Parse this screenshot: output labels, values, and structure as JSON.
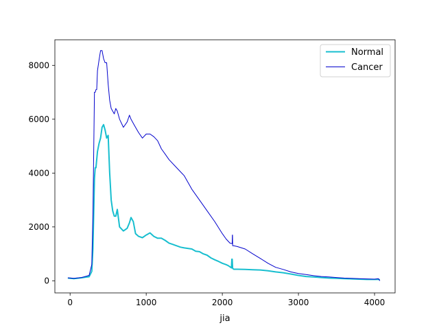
{
  "chart_data": {
    "type": "line",
    "title": "",
    "xlabel": "jia",
    "ylabel": "",
    "xlim": [
      -200,
      4270
    ],
    "ylim": [
      -450,
      8950
    ],
    "x_ticks": [
      0,
      1000,
      2000,
      3000,
      4000
    ],
    "y_ticks": [
      0,
      2000,
      4000,
      6000,
      8000
    ],
    "x_tick_labels": [
      "0",
      "1000",
      "2000",
      "3000",
      "4000"
    ],
    "y_tick_labels": [
      "0",
      "2000",
      "4000",
      "6000",
      "8000"
    ],
    "grid": false,
    "legend": {
      "placement": "top-right",
      "entries": [
        "Normal",
        "Cancer"
      ]
    },
    "series": [
      {
        "name": "Normal",
        "color": "#17becf",
        "width": 2,
        "x": [
          -30,
          50,
          150,
          250,
          285,
          300,
          320,
          330,
          340,
          360,
          380,
          400,
          420,
          440,
          460,
          480,
          500,
          520,
          540,
          560,
          580,
          600,
          620,
          650,
          700,
          750,
          780,
          800,
          830,
          860,
          900,
          950,
          1000,
          1050,
          1100,
          1150,
          1200,
          1250,
          1300,
          1350,
          1400,
          1450,
          1500,
          1600,
          1650,
          1700,
          1750,
          1800,
          1850,
          1900,
          1950,
          2000,
          2050,
          2080,
          2100,
          2120,
          2125,
          2130,
          2135,
          2140,
          2150,
          2200,
          2300,
          2400,
          2500,
          2600,
          2700,
          2800,
          2900,
          3000,
          3100,
          3200,
          3300,
          3400,
          3500,
          3600,
          3700,
          3800,
          3900,
          4000,
          4050,
          4070
        ],
        "y": [
          100,
          80,
          110,
          150,
          350,
          1200,
          3800,
          4200,
          4200,
          4800,
          5100,
          5300,
          5700,
          5800,
          5600,
          5300,
          5400,
          4000,
          3000,
          2600,
          2400,
          2400,
          2650,
          2000,
          1850,
          1950,
          2150,
          2350,
          2200,
          1750,
          1650,
          1600,
          1700,
          1780,
          1650,
          1580,
          1580,
          1500,
          1400,
          1350,
          1300,
          1250,
          1220,
          1180,
          1100,
          1080,
          1000,
          950,
          850,
          780,
          720,
          650,
          600,
          560,
          520,
          480,
          800,
          800,
          470,
          450,
          430,
          430,
          420,
          410,
          400,
          370,
          330,
          300,
          250,
          200,
          160,
          140,
          120,
          100,
          90,
          80,
          70,
          60,
          50,
          50,
          50,
          40
        ]
      },
      {
        "name": "Cancer",
        "color": "#0000cc",
        "width": 1,
        "x": [
          -30,
          50,
          150,
          250,
          285,
          300,
          320,
          330,
          340,
          350,
          360,
          380,
          400,
          420,
          440,
          460,
          480,
          500,
          520,
          540,
          560,
          580,
          600,
          620,
          650,
          700,
          750,
          780,
          800,
          830,
          860,
          900,
          950,
          1000,
          1050,
          1100,
          1150,
          1200,
          1250,
          1300,
          1400,
          1500,
          1600,
          1700,
          1800,
          1900,
          2000,
          2050,
          2100,
          2130,
          2132,
          2134,
          2136,
          2150,
          2200,
          2300,
          2400,
          2500,
          2600,
          2700,
          2800,
          2900,
          3000,
          3100,
          3200,
          3300,
          3400,
          3500,
          3600,
          3700,
          3800,
          3900,
          4000,
          4050,
          4070
        ],
        "y": [
          110,
          90,
          120,
          200,
          600,
          2500,
          7000,
          7000,
          7100,
          7100,
          7800,
          8200,
          8550,
          8550,
          8250,
          8100,
          8100,
          7300,
          6700,
          6400,
          6300,
          6200,
          6400,
          6300,
          6000,
          5700,
          5900,
          6150,
          6000,
          5850,
          5700,
          5500,
          5300,
          5450,
          5450,
          5350,
          5200,
          4900,
          4700,
          4500,
          4200,
          3900,
          3400,
          3000,
          2600,
          2200,
          1750,
          1550,
          1400,
          1380,
          1700,
          1700,
          1300,
          1300,
          1270,
          1180,
          1000,
          830,
          650,
          500,
          420,
          330,
          270,
          230,
          190,
          160,
          140,
          120,
          100,
          90,
          80,
          70,
          60,
          80,
          0
        ]
      }
    ]
  }
}
